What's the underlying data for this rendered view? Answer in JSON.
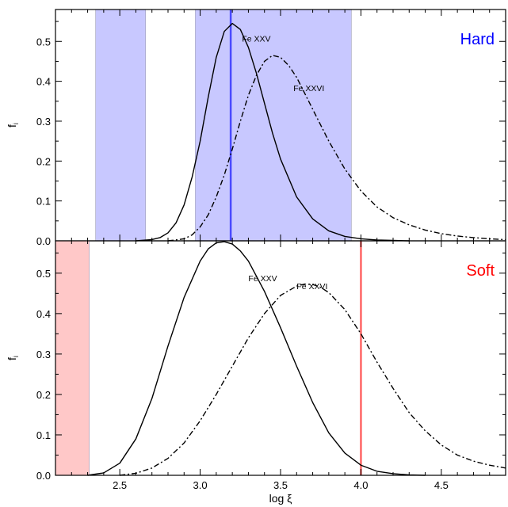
{
  "chart_data": [
    {
      "type": "line",
      "panel_label": "Hard",
      "label_color": "#0000ff",
      "xlabel": "log ξ",
      "ylabel": "f_i",
      "ylabel_main": "f",
      "ylabel_sub": "i",
      "xlim": [
        2.1,
        4.9
      ],
      "ylim": [
        0,
        0.58
      ],
      "xticks": [
        2.5,
        3.0,
        3.5,
        4.0,
        4.5
      ],
      "xtick_labels": [
        "2.5",
        "3.0",
        "3.5",
        "4.0",
        "4.5"
      ],
      "yticks": [
        0.0,
        0.1,
        0.2,
        0.3,
        0.4,
        0.5
      ],
      "ytick_labels": [
        "0.0",
        "0.1",
        "0.2",
        "0.3",
        "0.4",
        "0.5"
      ],
      "grid": false,
      "shaded_bands": [
        {
          "x0": 2.35,
          "x1": 2.66,
          "color": "#c8c8ff"
        },
        {
          "x0": 2.97,
          "x1": 3.94,
          "color": "#c8c8ff"
        }
      ],
      "vertical_lines": [
        {
          "x": 3.19,
          "color": "#4a4aff"
        }
      ],
      "series": [
        {
          "name": "Fe XXV",
          "style": "solid",
          "x": [
            2.6,
            2.7,
            2.75,
            2.8,
            2.85,
            2.9,
            2.95,
            3.0,
            3.05,
            3.1,
            3.15,
            3.2,
            3.25,
            3.3,
            3.35,
            3.4,
            3.45,
            3.5,
            3.6,
            3.7,
            3.8,
            3.9,
            4.0,
            4.1,
            4.2,
            4.3
          ],
          "y": [
            0.0,
            0.003,
            0.008,
            0.02,
            0.045,
            0.09,
            0.16,
            0.25,
            0.36,
            0.46,
            0.525,
            0.545,
            0.53,
            0.485,
            0.42,
            0.345,
            0.27,
            0.205,
            0.11,
            0.055,
            0.025,
            0.011,
            0.005,
            0.002,
            0.001,
            0.0
          ],
          "label_pos": [
            3.26,
            0.5
          ]
        },
        {
          "name": "Fe XXVI",
          "style": "dashdot",
          "x": [
            2.8,
            2.9,
            2.95,
            3.0,
            3.05,
            3.1,
            3.15,
            3.2,
            3.25,
            3.3,
            3.35,
            3.4,
            3.45,
            3.5,
            3.55,
            3.6,
            3.7,
            3.8,
            3.9,
            4.0,
            4.1,
            4.2,
            4.3,
            4.4,
            4.5,
            4.6,
            4.7,
            4.8,
            4.9
          ],
          "y": [
            0.0,
            0.005,
            0.015,
            0.035,
            0.065,
            0.11,
            0.165,
            0.23,
            0.3,
            0.365,
            0.415,
            0.45,
            0.465,
            0.46,
            0.44,
            0.41,
            0.33,
            0.25,
            0.18,
            0.125,
            0.085,
            0.058,
            0.04,
            0.027,
            0.018,
            0.012,
            0.008,
            0.005,
            0.003
          ],
          "label_pos": [
            3.58,
            0.375
          ]
        }
      ]
    },
    {
      "type": "line",
      "panel_label": "Soft",
      "label_color": "#ff0000",
      "xlabel": "log ξ",
      "ylabel": "f_i",
      "ylabel_main": "f",
      "ylabel_sub": "i",
      "xlim": [
        2.1,
        4.9
      ],
      "ylim": [
        0,
        0.58
      ],
      "xticks": [
        2.5,
        3.0,
        3.5,
        4.0,
        4.5
      ],
      "xtick_labels": [
        "2.5",
        "3.0",
        "3.5",
        "4.0",
        "4.5"
      ],
      "yticks": [
        0.0,
        0.1,
        0.2,
        0.3,
        0.4,
        0.5
      ],
      "ytick_labels": [
        "0.0",
        "0.1",
        "0.2",
        "0.3",
        "0.4",
        "0.5"
      ],
      "grid": false,
      "shaded_bands": [
        {
          "x0": 2.1,
          "x1": 2.31,
          "color": "#ffc8c8"
        }
      ],
      "vertical_lines": [
        {
          "x": 4.0,
          "color": "#ff6666"
        }
      ],
      "series": [
        {
          "name": "Fe XXV",
          "style": "solid",
          "x": [
            2.3,
            2.4,
            2.5,
            2.6,
            2.7,
            2.8,
            2.9,
            3.0,
            3.05,
            3.1,
            3.15,
            3.2,
            3.25,
            3.3,
            3.4,
            3.5,
            3.6,
            3.7,
            3.8,
            3.9,
            4.0,
            4.1,
            4.2,
            4.3,
            4.4
          ],
          "y": [
            0.0,
            0.006,
            0.03,
            0.09,
            0.19,
            0.32,
            0.44,
            0.53,
            0.56,
            0.575,
            0.578,
            0.572,
            0.555,
            0.53,
            0.455,
            0.365,
            0.27,
            0.18,
            0.105,
            0.055,
            0.025,
            0.01,
            0.004,
            0.001,
            0.0
          ]
        },
        {
          "name": "Fe XXVI",
          "style": "dashdot",
          "x": [
            2.5,
            2.6,
            2.7,
            2.8,
            2.9,
            3.0,
            3.1,
            3.2,
            3.3,
            3.4,
            3.5,
            3.6,
            3.65,
            3.7,
            3.75,
            3.8,
            3.9,
            4.0,
            4.1,
            4.2,
            4.3,
            4.4,
            4.5,
            4.6,
            4.7,
            4.8,
            4.9
          ],
          "y": [
            0.0,
            0.005,
            0.018,
            0.042,
            0.08,
            0.135,
            0.2,
            0.27,
            0.34,
            0.4,
            0.445,
            0.468,
            0.473,
            0.472,
            0.465,
            0.452,
            0.41,
            0.35,
            0.28,
            0.215,
            0.155,
            0.11,
            0.075,
            0.05,
            0.035,
            0.025,
            0.018
          ]
        }
      ]
    }
  ]
}
